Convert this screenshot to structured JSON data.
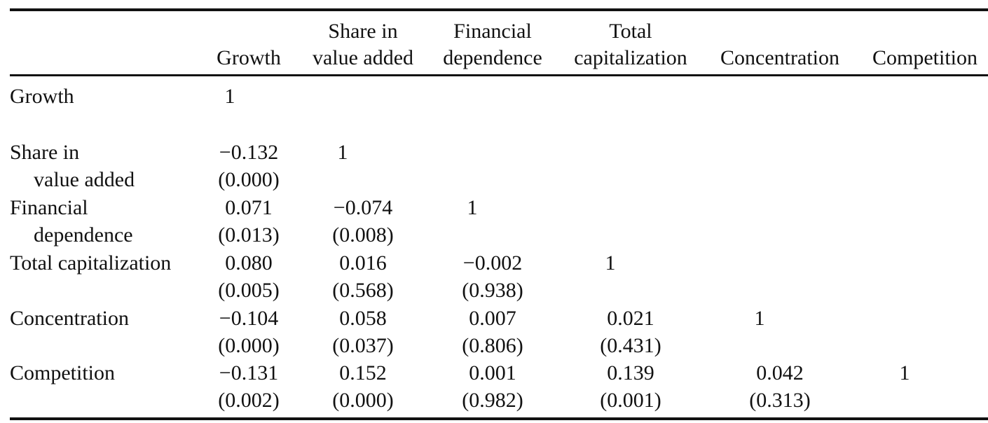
{
  "table": {
    "columns": [
      [
        "Growth"
      ],
      [
        "Share in",
        "value added"
      ],
      [
        "Financial",
        "dependence"
      ],
      [
        "Total",
        "capitalization"
      ],
      [
        "Concentration"
      ],
      [
        "Competition"
      ]
    ],
    "rows": [
      {
        "label": [
          "Growth"
        ],
        "cells": [
          [
            "1"
          ]
        ]
      },
      {
        "label": [
          "Share in",
          "value added"
        ],
        "cells": [
          [
            "−0.132",
            "(0.000)"
          ],
          [
            "1"
          ]
        ]
      },
      {
        "label": [
          "Financial",
          "dependence"
        ],
        "cells": [
          [
            "0.071",
            "(0.013)"
          ],
          [
            "−0.074",
            "(0.008)"
          ],
          [
            "1"
          ]
        ]
      },
      {
        "label": [
          "Total capitalization"
        ],
        "cells": [
          [
            "0.080",
            "(0.005)"
          ],
          [
            "0.016",
            "(0.568)"
          ],
          [
            "−0.002",
            "(0.938)"
          ],
          [
            "1"
          ]
        ]
      },
      {
        "label": [
          "Concentration"
        ],
        "cells": [
          [
            "−0.104",
            "(0.000)"
          ],
          [
            "0.058",
            "(0.037)"
          ],
          [
            "0.007",
            "(0.806)"
          ],
          [
            "0.021",
            "(0.431)"
          ],
          [
            "1"
          ]
        ]
      },
      {
        "label": [
          "Competition"
        ],
        "cells": [
          [
            "−0.131",
            "(0.002)"
          ],
          [
            "0.152",
            "(0.000)"
          ],
          [
            "0.001",
            "(0.982)"
          ],
          [
            "0.139",
            "(0.001)"
          ],
          [
            "0.042",
            "(0.313)"
          ],
          [
            "1"
          ]
        ]
      }
    ]
  }
}
